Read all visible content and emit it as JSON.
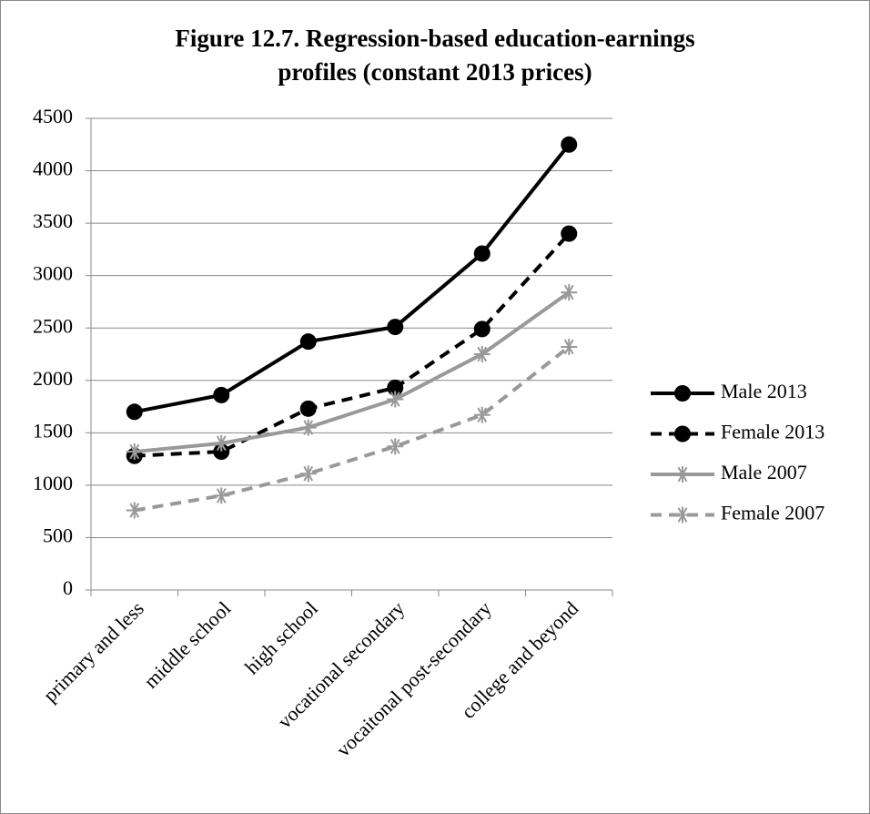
{
  "chart_data": {
    "type": "line",
    "title": "Figure 12.7. Regression-based education-earnings profiles (constant 2013 prices)",
    "categories": [
      "primary and less",
      "middle school",
      "high school",
      "vocational secondary",
      "vocaitonal post-secondary",
      "college and beyond"
    ],
    "series": [
      {
        "name": "Male 2013",
        "color": "#000000",
        "dash": "solid",
        "marker": "circle",
        "values": [
          1700,
          1860,
          2370,
          2510,
          3210,
          4250
        ]
      },
      {
        "name": "Female 2013",
        "color": "#000000",
        "dash": "dashed",
        "marker": "circle",
        "values": [
          1280,
          1320,
          1730,
          1930,
          2490,
          3400
        ]
      },
      {
        "name": "Male 2007",
        "color": "#999999",
        "dash": "solid",
        "marker": "star",
        "values": [
          1320,
          1400,
          1550,
          1820,
          2250,
          2840
        ]
      },
      {
        "name": "Female 2007",
        "color": "#999999",
        "dash": "dashed",
        "marker": "star",
        "values": [
          760,
          900,
          1110,
          1370,
          1670,
          2320
        ]
      }
    ],
    "ylim": [
      0,
      4500
    ],
    "yticks": [
      0,
      500,
      1000,
      1500,
      2000,
      2500,
      3000,
      3500,
      4000,
      4500
    ],
    "grid": true,
    "legend": "right"
  }
}
